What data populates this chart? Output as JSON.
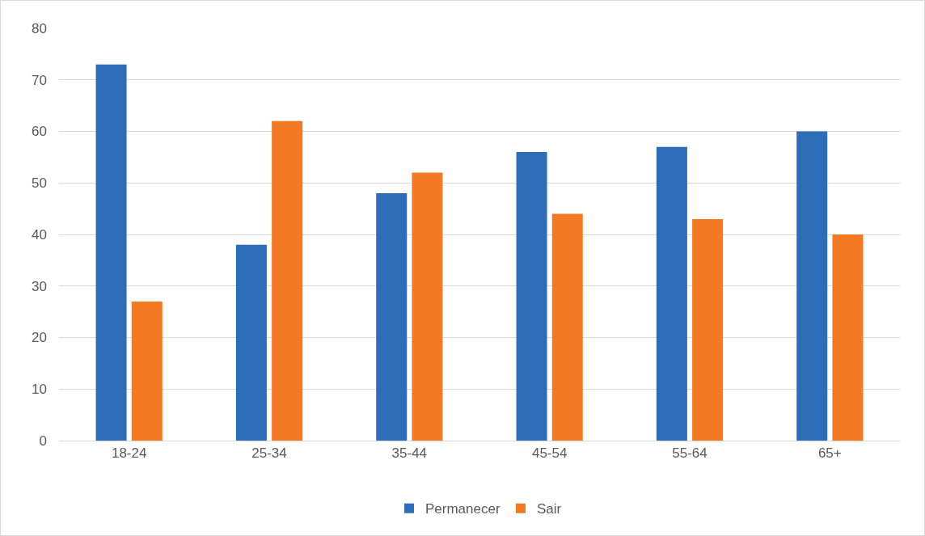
{
  "chart_data": {
    "type": "bar",
    "categories": [
      "18-24",
      "25-34",
      "35-44",
      "45-54",
      "55-64",
      "65+"
    ],
    "series": [
      {
        "name": "Permanecer",
        "color": "#2e6eb8",
        "values": [
          73,
          38,
          48,
          56,
          57,
          60
        ]
      },
      {
        "name": "Sair",
        "color": "#f37a22",
        "values": [
          27,
          62,
          52,
          44,
          43,
          40
        ]
      }
    ],
    "ylim": [
      0,
      80
    ],
    "yticks": [
      0,
      10,
      20,
      30,
      40,
      50,
      60,
      70,
      80
    ],
    "grid": "y",
    "legend": "bottom"
  }
}
